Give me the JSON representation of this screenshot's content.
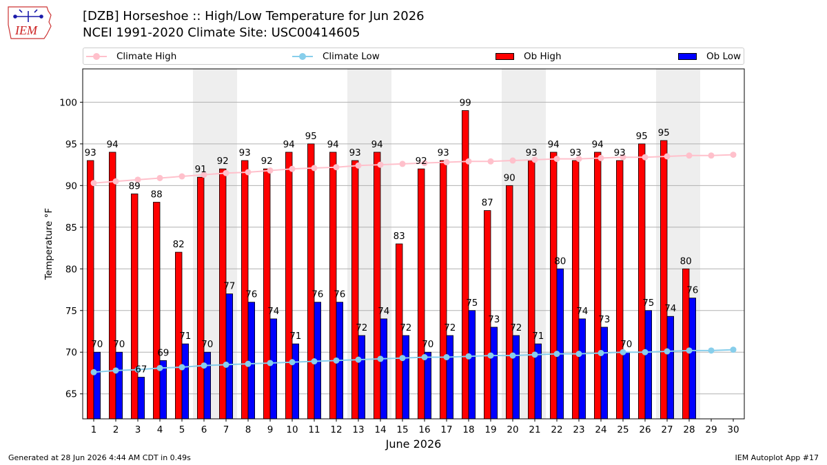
{
  "title_line1": "[DZB] Horseshoe :: High/Low Temperature for Jun 2026",
  "title_line2": "NCEI 1991-2020 Climate Site: USC00414605",
  "logo_text": "IEM",
  "footer_left": "Generated at 28 Jun 2026 4:44 AM CDT in 0.49s",
  "footer_right": "IEM Autoplot App #17",
  "colors": {
    "ob_high": "#ff0000",
    "ob_low": "#0000ff",
    "climate_high": "#ffc0cb",
    "climate_low": "#87ceeb",
    "weekend_band": "#eeeeee",
    "grid": "#b0b0b0"
  },
  "chart_data": {
    "type": "bar",
    "xlabel": "June 2026",
    "ylabel": "Temperature °F",
    "ylim": [
      62,
      104
    ],
    "yticks": [
      65,
      70,
      75,
      80,
      85,
      90,
      95,
      100
    ],
    "grid": "horizontal",
    "legend_position": "top",
    "categories": [
      "1",
      "2",
      "3",
      "4",
      "5",
      "6",
      "7",
      "8",
      "9",
      "10",
      "11",
      "12",
      "13",
      "14",
      "15",
      "16",
      "17",
      "18",
      "19",
      "20",
      "21",
      "22",
      "23",
      "24",
      "25",
      "26",
      "27",
      "28",
      "29",
      "30"
    ],
    "shaded_days": [
      6,
      7,
      13,
      14,
      20,
      21,
      27,
      28
    ],
    "series": [
      {
        "name": "Ob High",
        "kind": "bar",
        "values": [
          93,
          94,
          89,
          88,
          82,
          91,
          92,
          93,
          92,
          94,
          95,
          94,
          93,
          94,
          83,
          92,
          93,
          99,
          87,
          90,
          93,
          94,
          93,
          94,
          93,
          95,
          95.4,
          80,
          null,
          null
        ],
        "labels": [
          "93",
          "94",
          "89",
          "88",
          "82",
          "91",
          "92",
          "93",
          "92",
          "94",
          "95",
          "94",
          "93",
          "94",
          "83",
          "92",
          "93",
          "99",
          "87",
          "90",
          "93",
          "94",
          "93",
          "94",
          "93",
          "95",
          "95",
          "80",
          "",
          ""
        ]
      },
      {
        "name": "Ob Low",
        "kind": "bar",
        "values": [
          70,
          70,
          67,
          69,
          71,
          70,
          77,
          76,
          74,
          71,
          76,
          76,
          72,
          74,
          72,
          70,
          72,
          75,
          73,
          72,
          71,
          80,
          74,
          73,
          70,
          75,
          74.3,
          76.5,
          null,
          null
        ],
        "labels": [
          "70",
          "70",
          "67",
          "69",
          "71",
          "70",
          "77",
          "76",
          "74",
          "71",
          "76",
          "76",
          "72",
          "74",
          "72",
          "70",
          "72",
          "75",
          "73",
          "72",
          "71",
          "80",
          "74",
          "73",
          "70",
          "75",
          "74",
          "76",
          "",
          ""
        ]
      },
      {
        "name": "Climate High",
        "kind": "line",
        "values": [
          90.3,
          90.5,
          90.7,
          90.9,
          91.1,
          91.3,
          91.5,
          91.6,
          91.8,
          92.0,
          92.1,
          92.2,
          92.4,
          92.5,
          92.6,
          92.7,
          92.8,
          92.9,
          92.9,
          93.0,
          93.1,
          93.2,
          93.2,
          93.3,
          93.4,
          93.4,
          93.5,
          93.6,
          93.6,
          93.7
        ]
      },
      {
        "name": "Climate Low",
        "kind": "line",
        "values": [
          67.6,
          67.8,
          67.9,
          68.1,
          68.2,
          68.4,
          68.5,
          68.6,
          68.7,
          68.8,
          68.9,
          69.0,
          69.1,
          69.2,
          69.3,
          69.4,
          69.4,
          69.5,
          69.6,
          69.6,
          69.7,
          69.8,
          69.8,
          69.9,
          70.0,
          70.0,
          70.1,
          70.2,
          70.2,
          70.3
        ]
      }
    ]
  }
}
